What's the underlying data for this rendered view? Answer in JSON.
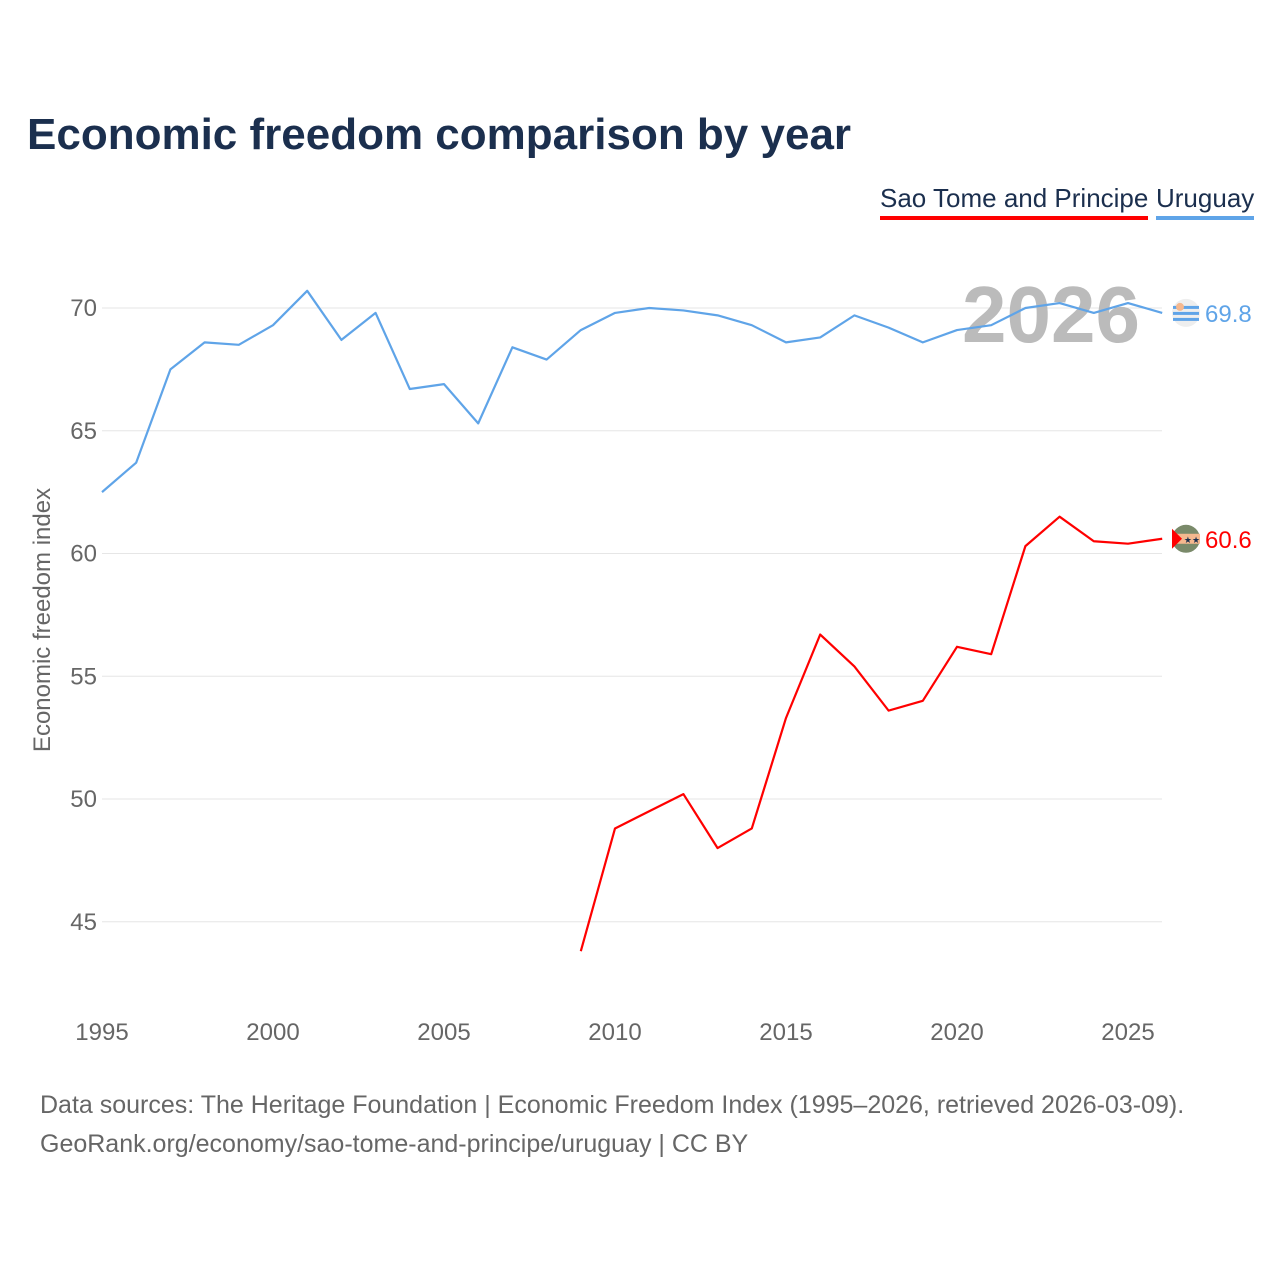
{
  "chart_data": {
    "type": "line",
    "title": "Economic freedom comparison by year",
    "xlabel": "",
    "ylabel": "Economic freedom index",
    "xlim": [
      1995,
      2026
    ],
    "ylim": [
      42,
      72.5
    ],
    "x_ticks": [
      1995,
      2000,
      2005,
      2010,
      2015,
      2020,
      2025
    ],
    "y_ticks": [
      45,
      50,
      55,
      60,
      65,
      70
    ],
    "grid": true,
    "legend_placement": "top-right",
    "year_watermark": "2026",
    "series": [
      {
        "name": "Sao Tome and Principe",
        "color": "#ff0000",
        "end_label": "60.6",
        "x": [
          2009,
          2010,
          2011,
          2012,
          2013,
          2014,
          2015,
          2016,
          2017,
          2018,
          2019,
          2020,
          2021,
          2022,
          2023,
          2024,
          2025,
          2026
        ],
        "values": [
          43.8,
          48.8,
          49.5,
          50.2,
          48.0,
          48.8,
          53.3,
          56.7,
          55.4,
          53.6,
          54.0,
          56.2,
          55.9,
          60.3,
          61.5,
          60.5,
          60.4,
          60.6
        ]
      },
      {
        "name": "Uruguay",
        "color": "#5fa4e8",
        "end_label": "69.8",
        "x": [
          1995,
          1996,
          1997,
          1998,
          1999,
          2000,
          2001,
          2002,
          2003,
          2004,
          2005,
          2006,
          2007,
          2008,
          2009,
          2010,
          2011,
          2012,
          2013,
          2014,
          2015,
          2016,
          2017,
          2018,
          2019,
          2020,
          2021,
          2022,
          2023,
          2024,
          2025,
          2026
        ],
        "values": [
          62.5,
          63.7,
          67.5,
          68.6,
          68.5,
          69.3,
          70.7,
          68.7,
          69.8,
          66.7,
          66.9,
          65.3,
          68.4,
          67.9,
          69.1,
          69.8,
          70.0,
          69.9,
          69.7,
          69.3,
          68.6,
          68.8,
          69.7,
          69.2,
          68.6,
          69.1,
          69.3,
          70.0,
          70.2,
          69.8,
          70.2,
          69.8
        ]
      }
    ]
  },
  "footer": {
    "line1": "Data sources: The Heritage Foundation | Economic Freedom Index (1995–2026, retrieved 2026-03-09).",
    "line2": "GeoRank.org/economy/sao-tome-and-principe/uruguay | CC BY"
  }
}
